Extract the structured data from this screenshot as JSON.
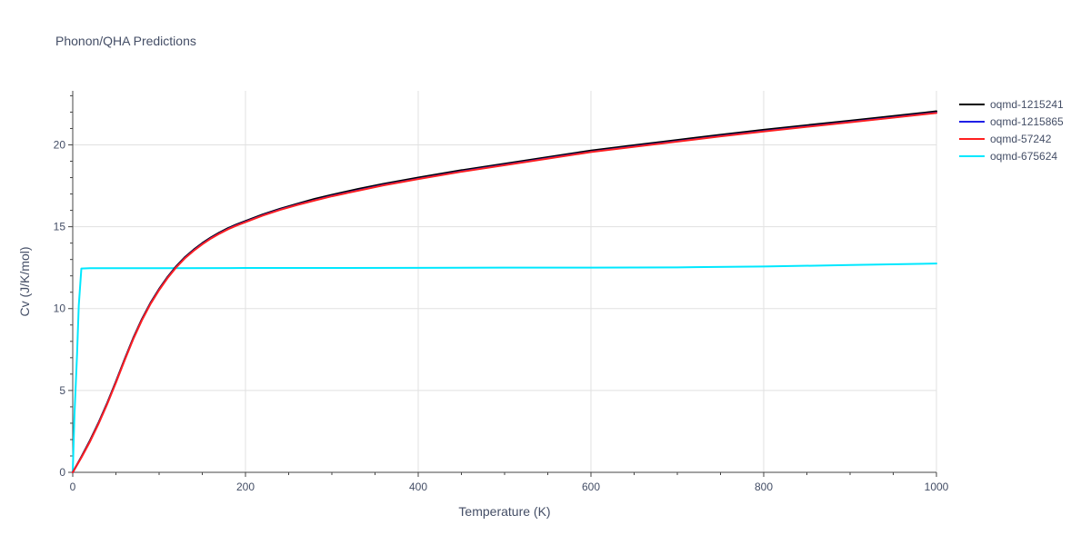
{
  "chart_data": {
    "type": "line",
    "title": "Phonon/QHA Predictions",
    "xlabel": "Temperature (K)",
    "ylabel": "Cv (J/K/mol)",
    "xlim": [
      0,
      1000
    ],
    "ylim": [
      0,
      23.3
    ],
    "xticks": [
      0,
      200,
      400,
      600,
      800,
      1000
    ],
    "yticks": [
      0,
      5,
      10,
      15,
      20
    ],
    "grid": true,
    "legend": "right",
    "series": [
      {
        "name": "oqmd-1215241",
        "color": "#000000",
        "x": [
          0,
          10,
          20,
          30,
          40,
          50,
          60,
          70,
          80,
          90,
          100,
          110,
          120,
          130,
          140,
          150,
          160,
          170,
          180,
          190,
          200,
          220,
          240,
          260,
          280,
          300,
          330,
          360,
          400,
          450,
          500,
          550,
          600,
          650,
          700,
          750,
          800,
          850,
          900,
          950,
          1000
        ],
        "y": [
          0,
          0.95,
          1.95,
          3.05,
          4.25,
          5.55,
          6.9,
          8.2,
          9.35,
          10.35,
          11.2,
          11.95,
          12.6,
          13.15,
          13.6,
          14.0,
          14.35,
          14.65,
          14.92,
          15.15,
          15.35,
          15.75,
          16.1,
          16.4,
          16.7,
          16.95,
          17.3,
          17.62,
          18.0,
          18.45,
          18.85,
          19.25,
          19.65,
          19.98,
          20.3,
          20.62,
          20.92,
          21.2,
          21.48,
          21.76,
          22.05
        ]
      },
      {
        "name": "oqmd-1215865",
        "color": "#1f1fe6",
        "x": [
          0,
          10,
          20,
          30,
          40,
          50,
          60,
          70,
          80,
          90,
          100,
          110,
          120,
          130,
          140,
          150,
          160,
          170,
          180,
          190,
          200,
          220,
          240,
          260,
          280,
          300,
          330,
          360,
          400,
          450,
          500,
          550,
          600,
          650,
          700,
          750,
          800,
          850,
          900,
          950,
          1000
        ],
        "y": [
          0,
          0.92,
          1.9,
          3.0,
          4.2,
          5.5,
          6.85,
          8.15,
          9.3,
          10.3,
          11.15,
          11.9,
          12.55,
          13.1,
          13.55,
          13.95,
          14.3,
          14.6,
          14.87,
          15.1,
          15.3,
          15.7,
          16.05,
          16.35,
          16.62,
          16.88,
          17.22,
          17.55,
          17.93,
          18.38,
          18.78,
          19.18,
          19.58,
          19.9,
          20.22,
          20.54,
          20.84,
          21.12,
          21.4,
          21.68,
          21.97
        ]
      },
      {
        "name": "oqmd-57242",
        "color": "#ff1f1f",
        "x": [
          0,
          10,
          20,
          30,
          40,
          50,
          60,
          70,
          80,
          90,
          100,
          110,
          120,
          130,
          140,
          150,
          160,
          170,
          180,
          190,
          200,
          220,
          240,
          260,
          280,
          300,
          330,
          360,
          400,
          450,
          500,
          550,
          600,
          650,
          700,
          750,
          800,
          850,
          900,
          950,
          1000
        ],
        "y": [
          0,
          0.9,
          1.88,
          2.98,
          4.18,
          5.48,
          6.83,
          8.13,
          9.28,
          10.28,
          11.13,
          11.88,
          12.53,
          13.08,
          13.53,
          13.93,
          14.28,
          14.58,
          14.85,
          15.08,
          15.28,
          15.68,
          16.03,
          16.33,
          16.6,
          16.86,
          17.2,
          17.53,
          17.91,
          18.36,
          18.76,
          19.16,
          19.56,
          19.88,
          20.2,
          20.52,
          20.82,
          21.1,
          21.38,
          21.66,
          21.95
        ]
      },
      {
        "name": "oqmd-675624",
        "color": "#00e8ff",
        "x": [
          0,
          2,
          5,
          7,
          10,
          20,
          50,
          100,
          200,
          300,
          400,
          500,
          600,
          700,
          800,
          900,
          1000
        ],
        "y": [
          0,
          3.5,
          7.2,
          10.2,
          12.45,
          12.47,
          12.47,
          12.47,
          12.48,
          12.48,
          12.49,
          12.5,
          12.5,
          12.52,
          12.57,
          12.66,
          12.75
        ]
      }
    ]
  }
}
